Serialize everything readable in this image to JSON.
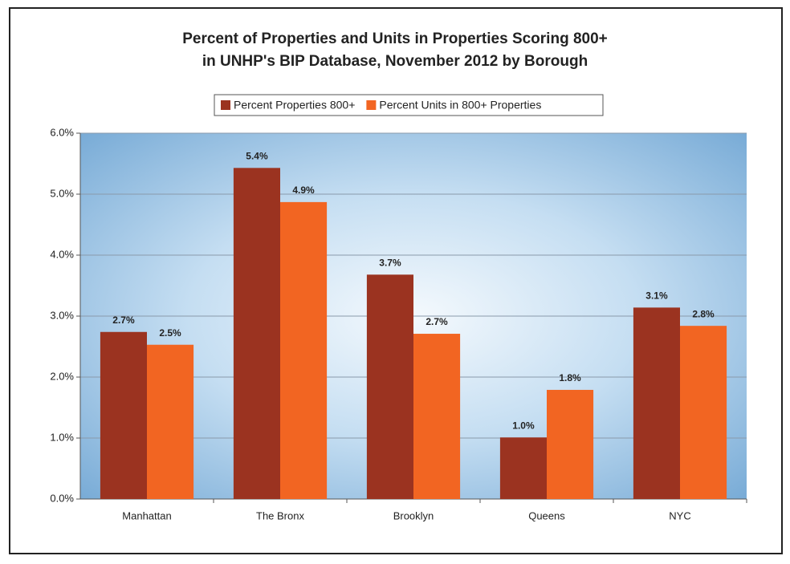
{
  "chart_data": {
    "type": "bar",
    "title": [
      "Percent of Properties and Units in Properties Scoring 800+",
      "in UNHP's BIP Database, November 2012 by Borough"
    ],
    "categories": [
      "Manhattan",
      "The Bronx",
      "Brooklyn",
      "Queens",
      "NYC"
    ],
    "series": [
      {
        "name": "Percent Properties 800+",
        "color": "#9b3320",
        "values": [
          2.74,
          5.43,
          3.68,
          1.01,
          3.14
        ],
        "value_labels": [
          "2.7%",
          "5.4%",
          "3.7%",
          "1.0%",
          "3.1%"
        ]
      },
      {
        "name": "Percent Units in 800+ Properties",
        "color": "#f26522",
        "values": [
          2.53,
          4.87,
          2.71,
          1.79,
          2.84
        ],
        "value_labels": [
          "2.5%",
          "4.9%",
          "2.7%",
          "1.8%",
          "2.8%"
        ]
      }
    ],
    "ylim": [
      0,
      6
    ],
    "yticks": [
      {
        "value": 0,
        "label": "0.0%"
      },
      {
        "value": 1,
        "label": "1.0%"
      },
      {
        "value": 2,
        "label": "2.0%"
      },
      {
        "value": 3,
        "label": "3.0%"
      },
      {
        "value": 4,
        "label": "4.0%"
      },
      {
        "value": 5,
        "label": "5.0%"
      },
      {
        "value": 6,
        "label": "6.0%"
      }
    ],
    "grid": true,
    "legend": "top"
  }
}
